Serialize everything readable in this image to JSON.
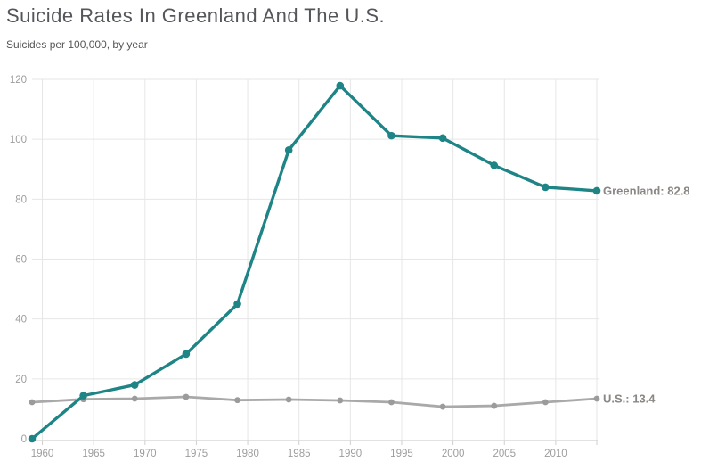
{
  "header": {
    "title": "Suicide Rates In Greenland And The U.S.",
    "subtitle": "Suicides per 100,000, by year"
  },
  "chart_data": {
    "type": "line",
    "x": [
      1959,
      1964,
      1969,
      1974,
      1979,
      1984,
      1989,
      1994,
      1999,
      2004,
      2009,
      2014
    ],
    "series": [
      {
        "name": "Greenland",
        "color": "#1e8486",
        "dot_color": "#1e8486",
        "end_label": "Greenland: 82.8",
        "values": [
          0,
          14.4,
          18.0,
          28.3,
          45.0,
          96.4,
          117.9,
          101.2,
          100.4,
          91.3,
          84.0,
          82.8
        ]
      },
      {
        "name": "U.S.",
        "color": "#a9a9a9",
        "dot_color": "#9b9b9b",
        "end_label": "U.S.: 13.4",
        "values": [
          12.2,
          13.2,
          13.4,
          14.0,
          12.9,
          13.1,
          12.8,
          12.2,
          10.7,
          11.0,
          12.2,
          13.4
        ]
      }
    ],
    "title": "Suicide Rates In Greenland And The U.S.",
    "subtitle": "Suicides per 100,000, by year",
    "xlabel": "",
    "ylabel": "",
    "xlim": [
      1959,
      2014
    ],
    "ylim": [
      0,
      120
    ],
    "x_ticks": [
      1960,
      1965,
      1970,
      1975,
      1980,
      1985,
      1990,
      1995,
      2000,
      2005,
      2010
    ],
    "y_ticks": [
      0,
      20,
      40,
      60,
      80,
      100,
      120
    ],
    "grid": true,
    "legend_position": "end-of-line-labels",
    "colors": {
      "greenland": "#1e8486",
      "us": "#a9a9a9",
      "grid": "#e6e6e6",
      "axis": "#c6c6c6",
      "tick": "#cfcfcf",
      "tick_label": "#9d9d9d",
      "end_label": "#8a8785",
      "title": "#54565a",
      "subtitle": "#555555"
    }
  }
}
